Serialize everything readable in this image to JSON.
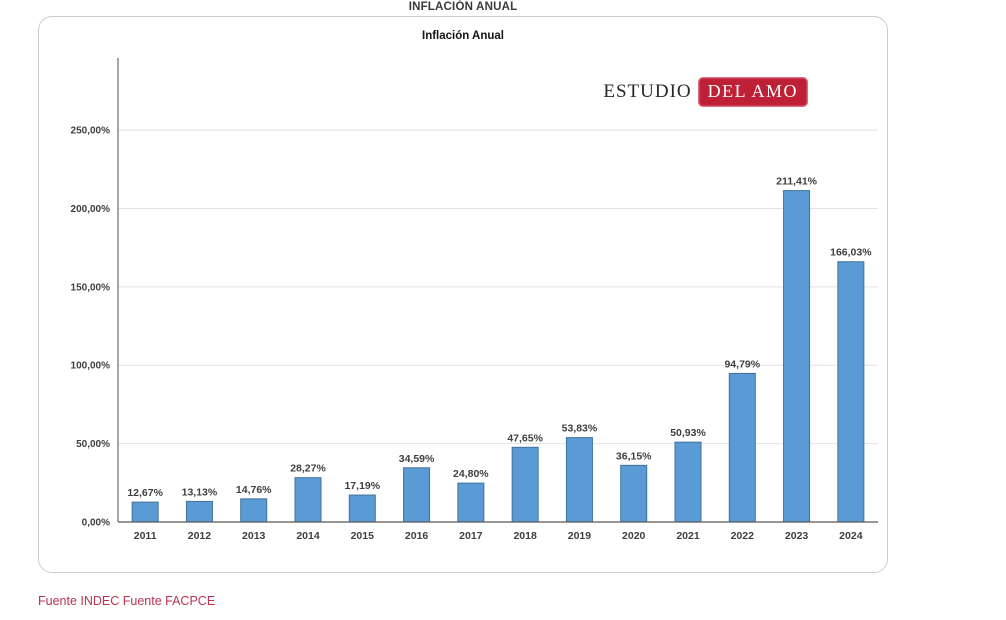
{
  "page": {
    "title": "INFLACIÓN ANUAL",
    "source": "Fuente INDEC Fuente FACPCE"
  },
  "logo": {
    "prefix": "ESTUDIO",
    "badge": "DEL AMO",
    "badge_color": "#be2035"
  },
  "chart_data": {
    "type": "bar",
    "title": "Inflación Anual",
    "xlabel": "",
    "ylabel": "",
    "categories": [
      "2011",
      "2012",
      "2013",
      "2014",
      "2015",
      "2016",
      "2017",
      "2018",
      "2019",
      "2020",
      "2021",
      "2022",
      "2023",
      "2024"
    ],
    "values": [
      12.67,
      13.13,
      14.76,
      28.27,
      17.19,
      34.59,
      24.8,
      47.65,
      53.83,
      36.15,
      50.93,
      94.79,
      211.41,
      166.03
    ],
    "value_labels": [
      "12,67%",
      "13,13%",
      "14,76%",
      "28,27%",
      "17,19%",
      "34,59%",
      "24,80%",
      "47,65%",
      "53,83%",
      "36,15%",
      "50,93%",
      "94,79%",
      "211,41%",
      "166,03%"
    ],
    "ylim": [
      0,
      296
    ],
    "yticks": {
      "values": [
        0,
        50,
        100,
        150,
        200,
        250
      ],
      "labels": [
        "0,00%",
        "50,00%",
        "100,00%",
        "150,00%",
        "200,00%",
        "250,00%"
      ]
    },
    "grid": true,
    "legend_position": "none",
    "bar_fill": "#5b9bd5",
    "bar_stroke": "#41719c",
    "grid_color": "#e2e2e2",
    "axis_color": "#6a6a6a",
    "label_color": "#3f3f3f"
  }
}
